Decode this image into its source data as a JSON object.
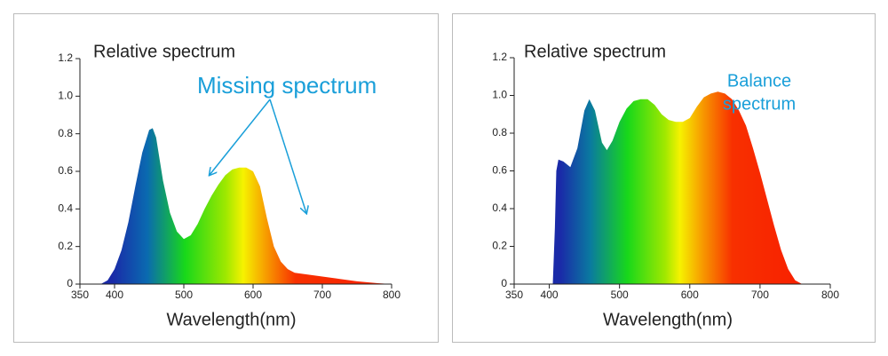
{
  "chart_data": [
    {
      "type": "area",
      "title": "Relative spectrum",
      "xlabel": "Wavelength(nm)",
      "annotation": "Missing spectrum",
      "annotation_color": "#1a9fd9",
      "x": [
        380,
        390,
        400,
        410,
        420,
        430,
        440,
        450,
        455,
        460,
        470,
        480,
        490,
        500,
        510,
        520,
        530,
        540,
        550,
        560,
        570,
        580,
        590,
        600,
        610,
        620,
        630,
        640,
        650,
        660,
        680,
        700,
        720,
        750,
        780,
        800
      ],
      "values": [
        0,
        0.02,
        0.08,
        0.18,
        0.33,
        0.52,
        0.7,
        0.82,
        0.83,
        0.78,
        0.55,
        0.38,
        0.28,
        0.24,
        0.26,
        0.32,
        0.4,
        0.47,
        0.53,
        0.58,
        0.61,
        0.62,
        0.62,
        0.6,
        0.52,
        0.35,
        0.2,
        0.12,
        0.08,
        0.06,
        0.05,
        0.04,
        0.03,
        0.015,
        0.005,
        0
      ],
      "xlim": [
        350,
        800
      ],
      "xticks": [
        350,
        400,
        500,
        600,
        700,
        800
      ],
      "ylim": [
        0,
        1.2
      ],
      "yticks": [
        0,
        0.2,
        0.4,
        0.6,
        0.8,
        {
          "value": 1,
          "label": "1.0"
        },
        1.2
      ]
    },
    {
      "type": "area",
      "title": "Relative spectrum",
      "xlabel": "Wavelength(nm)",
      "annotation": [
        "Balance",
        "spectrum"
      ],
      "annotation_color": "#1a9fd9",
      "x": [
        405,
        408,
        410,
        413,
        420,
        430,
        440,
        450,
        457,
        465,
        475,
        482,
        490,
        500,
        510,
        520,
        530,
        540,
        550,
        560,
        570,
        580,
        590,
        600,
        610,
        620,
        630,
        640,
        650,
        660,
        670,
        680,
        690,
        700,
        710,
        720,
        730,
        740,
        750,
        760
      ],
      "values": [
        0,
        0.3,
        0.6,
        0.66,
        0.65,
        0.62,
        0.72,
        0.92,
        0.98,
        0.92,
        0.75,
        0.71,
        0.76,
        0.86,
        0.93,
        0.97,
        0.98,
        0.98,
        0.95,
        0.9,
        0.87,
        0.86,
        0.86,
        0.88,
        0.94,
        0.99,
        1.01,
        1.02,
        1.01,
        0.98,
        0.92,
        0.84,
        0.72,
        0.59,
        0.45,
        0.31,
        0.18,
        0.08,
        0.02,
        0
      ],
      "xlim": [
        350,
        800
      ],
      "xticks": [
        350,
        400,
        500,
        600,
        700,
        800
      ],
      "ylim": [
        0,
        1.2
      ],
      "yticks": [
        0,
        0.2,
        0.4,
        0.6,
        0.8,
        {
          "value": 1,
          "label": "1.0"
        },
        1.2
      ]
    }
  ]
}
